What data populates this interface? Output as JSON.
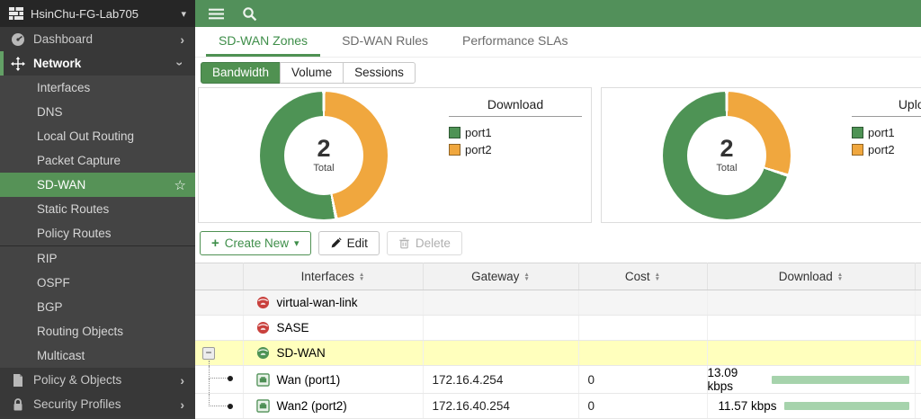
{
  "titlebar": {
    "device_name": "HsinChu-FG-Lab705"
  },
  "sidebar": {
    "items": [
      {
        "label": "Dashboard"
      },
      {
        "label": "Network"
      },
      {
        "label": "Interfaces"
      },
      {
        "label": "DNS"
      },
      {
        "label": "Local Out Routing"
      },
      {
        "label": "Packet Capture"
      },
      {
        "label": "SD-WAN"
      },
      {
        "label": "Static Routes"
      },
      {
        "label": "Policy Routes"
      },
      {
        "label": "RIP"
      },
      {
        "label": "OSPF"
      },
      {
        "label": "BGP"
      },
      {
        "label": "Routing Objects"
      },
      {
        "label": "Multicast"
      },
      {
        "label": "Policy & Objects"
      },
      {
        "label": "Security Profiles"
      }
    ]
  },
  "tabs": {
    "items": [
      {
        "label": "SD-WAN Zones",
        "active": true
      },
      {
        "label": "SD-WAN Rules",
        "active": false
      },
      {
        "label": "Performance SLAs",
        "active": false
      }
    ]
  },
  "subtabs": {
    "items": [
      {
        "label": "Bandwidth",
        "active": true
      },
      {
        "label": "Volume",
        "active": false
      },
      {
        "label": "Sessions",
        "active": false
      }
    ]
  },
  "chart_data": [
    {
      "type": "pie",
      "title": "Download",
      "labels": [
        "port1",
        "port2"
      ],
      "values_kbps": [
        13.09,
        11.57
      ],
      "percents": [
        53.1,
        46.9
      ],
      "colors": [
        "#4e9355",
        "#f0a73e"
      ],
      "center_value": "2",
      "center_label": "Total",
      "legend_position": "right"
    },
    {
      "type": "pie",
      "title": "Upload",
      "labels": [
        "port1",
        "port2"
      ],
      "percents": [
        70,
        30
      ],
      "colors": [
        "#4e9355",
        "#f0a73e"
      ],
      "center_value": "2",
      "center_label": "Total",
      "legend_position": "right"
    }
  ],
  "toolbar": {
    "create_label": "Create New",
    "edit_label": "Edit",
    "delete_label": "Delete"
  },
  "table": {
    "columns": [
      "",
      "Interfaces",
      "Gateway",
      "Cost",
      "Download"
    ],
    "rows": [
      {
        "name": "virtual-wan-link",
        "icon": "zone-red",
        "gateway": "",
        "cost": "",
        "download": ""
      },
      {
        "name": "SASE",
        "icon": "zone-red",
        "gateway": "",
        "cost": "",
        "download": ""
      },
      {
        "name": "SD-WAN",
        "icon": "zone-green",
        "gateway": "",
        "cost": "",
        "download": "",
        "selected": true,
        "expanded": true
      },
      {
        "name": "Wan (port1)",
        "icon": "port",
        "gateway": "172.16.4.254",
        "cost": "0",
        "download": "13.09 kbps",
        "download_kbps": 13.09
      },
      {
        "name": "Wan2 (port2)",
        "icon": "port",
        "gateway": "172.16.40.254",
        "cost": "0",
        "download": "11.57 kbps",
        "download_kbps": 11.57
      }
    ]
  }
}
